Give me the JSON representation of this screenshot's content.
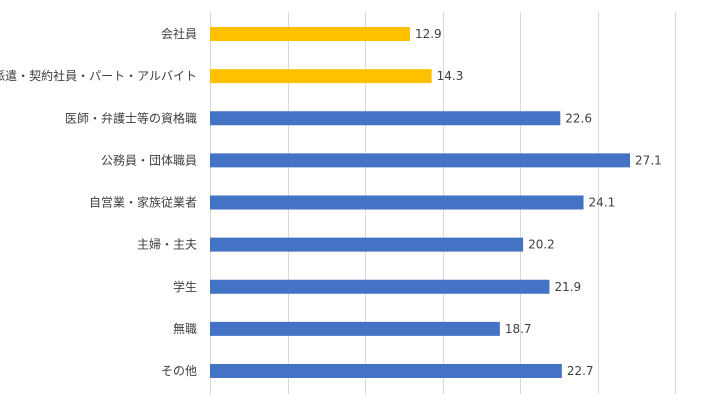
{
  "chart_data": {
    "type": "bar",
    "orientation": "horizontal",
    "title": "",
    "xlabel": "",
    "ylabel": "",
    "xlim": [
      0,
      30
    ],
    "grid": true,
    "gridlines_x": [
      0,
      5,
      10,
      15,
      20,
      25,
      30
    ],
    "legend": "none",
    "categories": [
      "会社員",
      "派遣・契約社員・パート・アルバイト",
      "医師・弁護士等の資格職",
      "公務員・団体職員",
      "自営業・家族従業者",
      "主婦・主夫",
      "学生",
      "無職",
      "その他"
    ],
    "values": [
      12.9,
      14.3,
      22.6,
      27.1,
      24.1,
      20.2,
      21.9,
      18.7,
      22.7
    ],
    "value_labels": [
      "12.9",
      "14.3",
      "22.6",
      "27.1",
      "24.1",
      "20.2",
      "21.9",
      "18.7",
      "22.7"
    ],
    "bar_colors": [
      "#ffc000",
      "#ffc000",
      "#4472c4",
      "#4472c4",
      "#4472c4",
      "#4472c4",
      "#4472c4",
      "#4472c4",
      "#4472c4"
    ]
  }
}
